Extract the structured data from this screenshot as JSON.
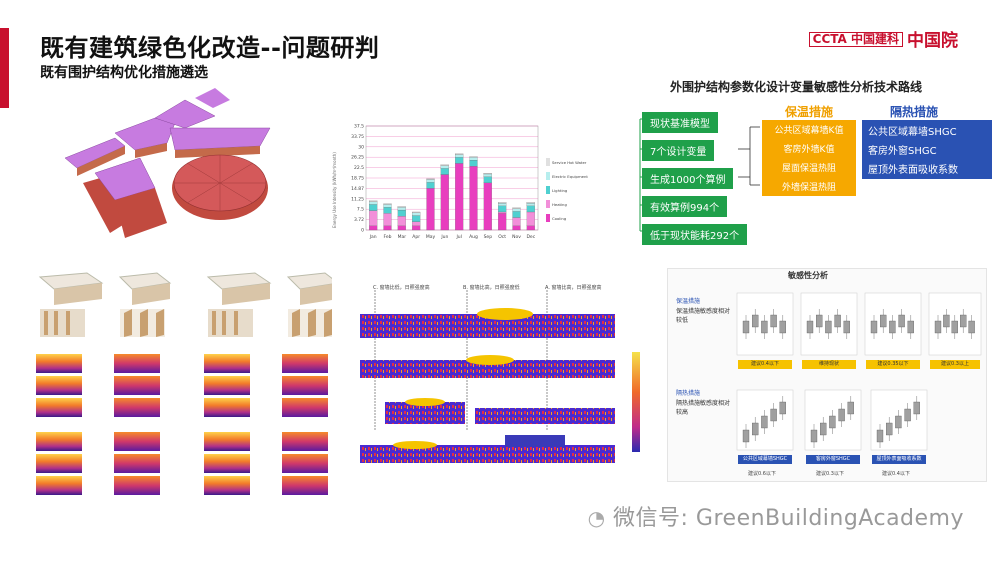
{
  "header": {
    "title": "既有建筑绿色化改造--问题研判",
    "subtitle": "既有围护结构优化措施遴选",
    "logo_ccta": "CCTA 中国建科",
    "logo_text": "中国院"
  },
  "route": {
    "title": "外围护结构参数化设计变量敏感性分析技术路线",
    "steps": [
      "现状基准模型",
      "7个设计变量",
      "生成1000个算例",
      "有效算例994个",
      "低于现状能耗292个"
    ],
    "insulation": {
      "heading": "保温措施",
      "items": [
        "公共区域幕墙K值",
        "客房外墙K值",
        "屋面保温热阻",
        "外墙保温热阻"
      ]
    },
    "heat_shield": {
      "heading": "隔热措施",
      "items": [
        "公共区域幕墙SHGC",
        "客房外窗SHGC",
        "屋顶外表面吸收系数"
      ]
    }
  },
  "chart_data": {
    "type": "bar",
    "ylabel": "Energy Use Intensity (kWh/m²/month)",
    "categories": [
      "Jan",
      "Feb",
      "Mar",
      "Apr",
      "May",
      "Jun",
      "Jul",
      "Aug",
      "Sep",
      "Oct",
      "Nov",
      "Dec"
    ],
    "y_ticks": [
      "37.5",
      "33.75",
      "30",
      "26.25",
      "22.5",
      "18.75",
      "14.87",
      "11.25",
      "7.5",
      "3.72",
      "0"
    ],
    "ylim": [
      0,
      37.5
    ],
    "series": [
      {
        "name": "Cooling",
        "values": [
          1.5,
          1.5,
          1.5,
          1.5,
          15,
          20,
          24,
          23,
          17,
          6,
          1.5,
          1.5
        ],
        "color": "#e83ebe"
      },
      {
        "name": "Heating",
        "values": [
          5.5,
          4.5,
          3.5,
          1.5,
          0,
          0,
          0,
          0,
          0,
          0.5,
          3,
          5
        ],
        "color": "#f28fd9"
      },
      {
        "name": "Lighting",
        "values": [
          2.2,
          2.2,
          2.2,
          2.2,
          2.2,
          2.2,
          2.2,
          2.2,
          2.2,
          2.2,
          2.2,
          2.2
        ],
        "color": "#4fd0d0"
      },
      {
        "name": "Electric Equipment",
        "values": [
          1,
          1,
          1,
          1,
          1,
          1,
          1,
          1,
          1,
          1,
          1,
          1
        ],
        "color": "#b7eeee"
      },
      {
        "name": "Service Hot Water",
        "values": [
          0.3,
          0.3,
          0.3,
          0.3,
          0.3,
          0.3,
          0.3,
          0.3,
          0.3,
          0.3,
          0.3,
          0.3
        ],
        "color": "#e0e0e0"
      }
    ],
    "legend_order": [
      "Service Hot Water",
      "Electric Equipment",
      "Lighting",
      "Heating",
      "Cooling"
    ],
    "legend_position": "right"
  },
  "elevations": {
    "markers": [
      "C. 窗墙比低，日照强度高",
      "B. 窗墙比高，日照强度低",
      "A. 窗墙比高，日照强度高"
    ]
  },
  "sensitivity": {
    "title": "敏感性分析",
    "row1_label": "保温措施",
    "row1_desc": "保温措施敏感度相对较低",
    "row1_boxes": [
      "建议0.4以下",
      "维持现状",
      "建议0.35以下",
      "建议0.3以上"
    ],
    "row2_label": "隔热措施",
    "row2_desc": "隔热措施敏感度相对较高",
    "row2_boxes": [
      "建议0.6以下",
      "建议0.3以下",
      "建议0.4以下"
    ],
    "row2_blue": [
      "公共区域幕墙SHGC",
      "客房外窗SHGC",
      "屋顶外表面吸收系数"
    ]
  },
  "watermark": "微信号: GreenBuildingAcademy"
}
